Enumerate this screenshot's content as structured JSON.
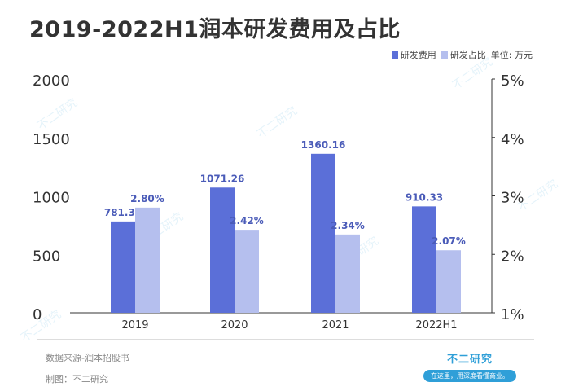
{
  "title": "2019-2022H1润本研发费用及占比",
  "legend": {
    "series1": "研发费用",
    "series2": "研发占比",
    "unit": "单位: 万元"
  },
  "footer": {
    "source": "数据来源-润本招股书",
    "maker": "制图：不二研究",
    "brand_name": "不二研究",
    "brand_slogan": "在这里，用深度看懂商业。"
  },
  "watermark_text": "不二研究",
  "colors": {
    "series1": "#5b6fd8",
    "series2": "#b5bfee",
    "label1": "#4a5bb8",
    "label2": "#4a5bb8",
    "axis": "#333333",
    "brand": "#2f9fd8"
  },
  "chart_data": {
    "type": "bar",
    "title": "2019-2022H1润本研发费用及占比",
    "categories": [
      "2019",
      "2020",
      "2021",
      "2022H1"
    ],
    "series": [
      {
        "name": "研发费用",
        "axis": "left",
        "values": [
          781.39,
          1071.26,
          1360.16,
          910.33
        ],
        "labels": [
          "781.39",
          "1071.26",
          "1360.16",
          "910.33"
        ]
      },
      {
        "name": "研发占比",
        "axis": "right",
        "values": [
          2.8,
          2.42,
          2.34,
          2.07
        ],
        "labels": [
          "2.80%",
          "2.42%",
          "2.34%",
          "2.07%"
        ]
      }
    ],
    "y_left": {
      "lim": [
        0,
        2000
      ],
      "ticks": [
        0,
        500,
        1000,
        1500,
        2000
      ],
      "tick_labels": [
        "0",
        "500",
        "1000",
        "1500",
        "2000"
      ]
    },
    "y_right": {
      "lim": [
        1,
        5
      ],
      "ticks": [
        1,
        2,
        3,
        4,
        5
      ],
      "tick_labels": [
        "1%",
        "2%",
        "3%",
        "4%",
        "5%"
      ]
    },
    "grid": false,
    "legend_position": "top-right"
  }
}
